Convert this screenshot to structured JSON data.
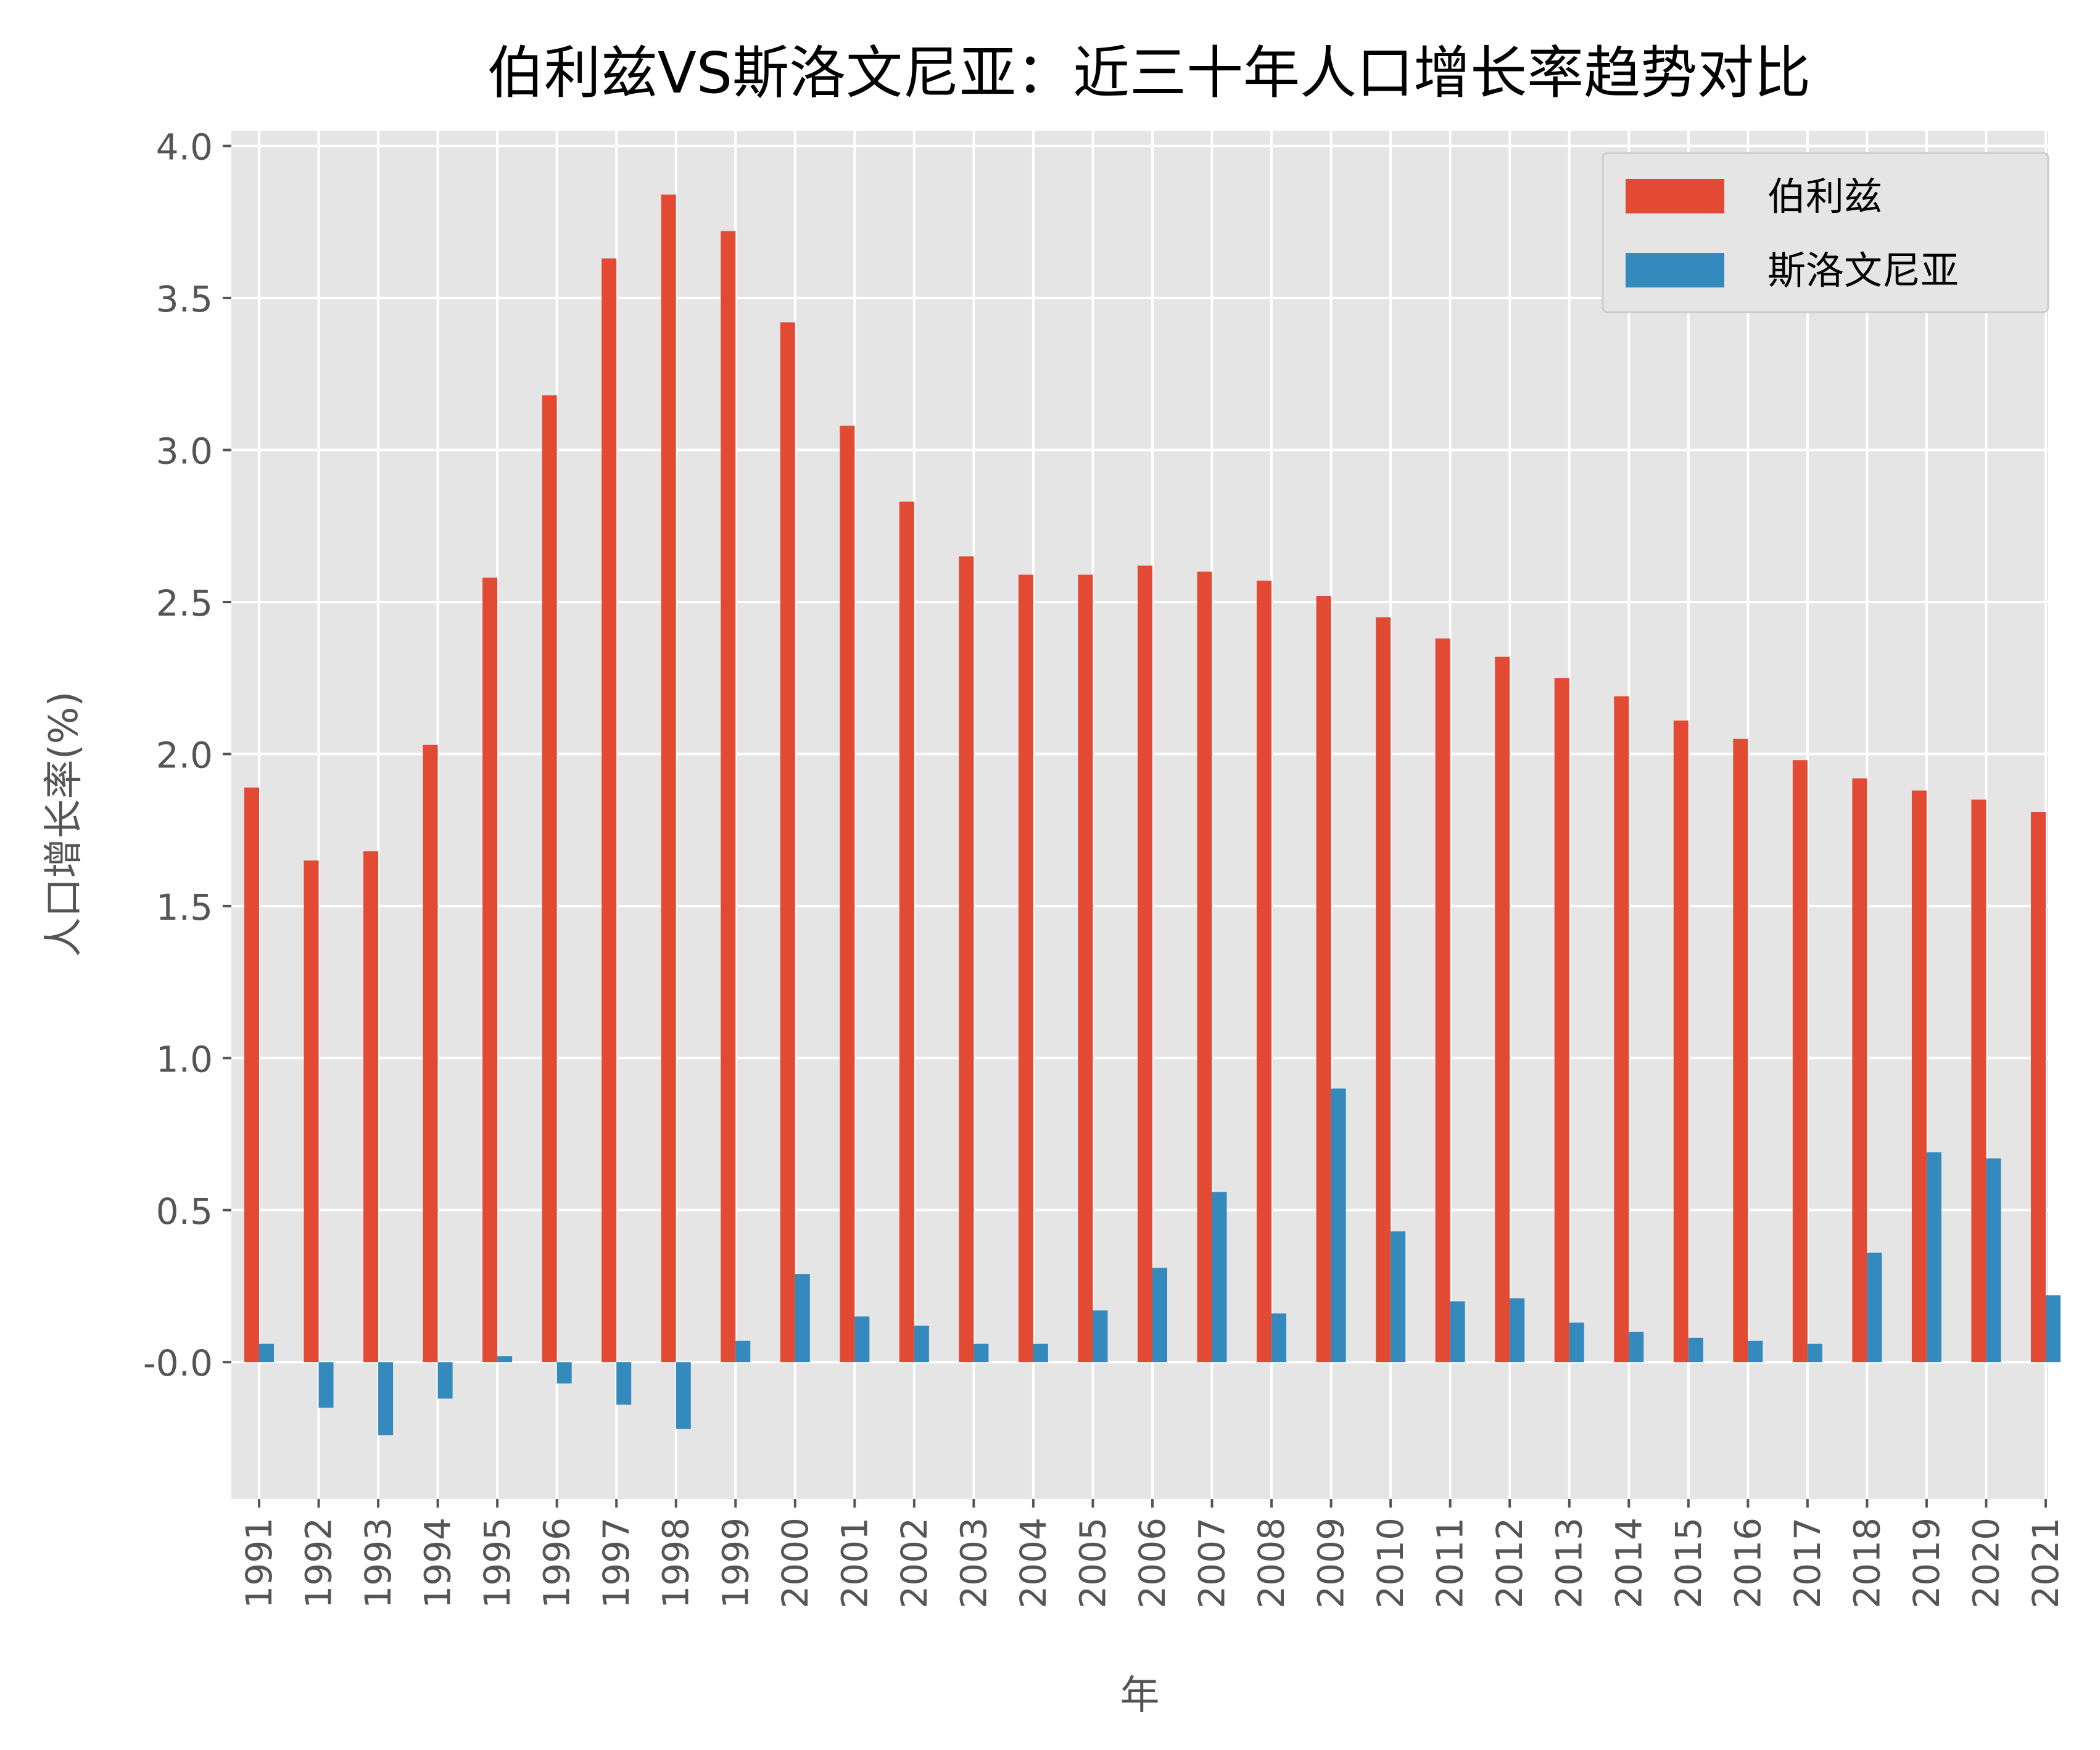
{
  "chart_data": {
    "type": "bar",
    "title": "伯利兹VS斯洛文尼亚：近三十年人口增长率趋势对比",
    "xlabel": "年",
    "ylabel": "人口增长率(%)",
    "ylim": [
      -0.45,
      4.05
    ],
    "yticks": [
      "-0.0",
      "0.5",
      "1.0",
      "1.5",
      "2.0",
      "2.5",
      "3.0",
      "3.5",
      "4.0"
    ],
    "ytick_values": [
      0,
      0.5,
      1.0,
      1.5,
      2.0,
      2.5,
      3.0,
      3.5,
      4.0
    ],
    "grid": true,
    "legend_position": "top-right",
    "categories": [
      "1991",
      "1992",
      "1993",
      "1994",
      "1995",
      "1996",
      "1997",
      "1998",
      "1999",
      "2000",
      "2001",
      "2002",
      "2003",
      "2004",
      "2005",
      "2006",
      "2007",
      "2008",
      "2009",
      "2010",
      "2011",
      "2012",
      "2013",
      "2014",
      "2015",
      "2016",
      "2017",
      "2018",
      "2019",
      "2020",
      "2021"
    ],
    "series": [
      {
        "name": "伯利兹",
        "color": "#E24A33",
        "values": [
          1.89,
          1.65,
          1.68,
          2.03,
          2.58,
          3.18,
          3.63,
          3.84,
          3.72,
          3.42,
          3.08,
          2.83,
          2.65,
          2.59,
          2.59,
          2.62,
          2.6,
          2.57,
          2.52,
          2.45,
          2.38,
          2.32,
          2.25,
          2.19,
          2.11,
          2.05,
          1.98,
          1.92,
          1.88,
          1.85,
          1.81
        ]
      },
      {
        "name": "斯洛文尼亚",
        "color": "#348ABD",
        "values": [
          0.06,
          -0.15,
          -0.24,
          -0.12,
          0.02,
          -0.07,
          -0.14,
          -0.22,
          0.07,
          0.29,
          0.15,
          0.12,
          0.06,
          0.06,
          0.17,
          0.31,
          0.56,
          0.16,
          0.9,
          0.43,
          0.2,
          0.21,
          0.13,
          0.1,
          0.08,
          0.07,
          0.06,
          0.36,
          0.69,
          0.67,
          0.22
        ]
      }
    ]
  }
}
